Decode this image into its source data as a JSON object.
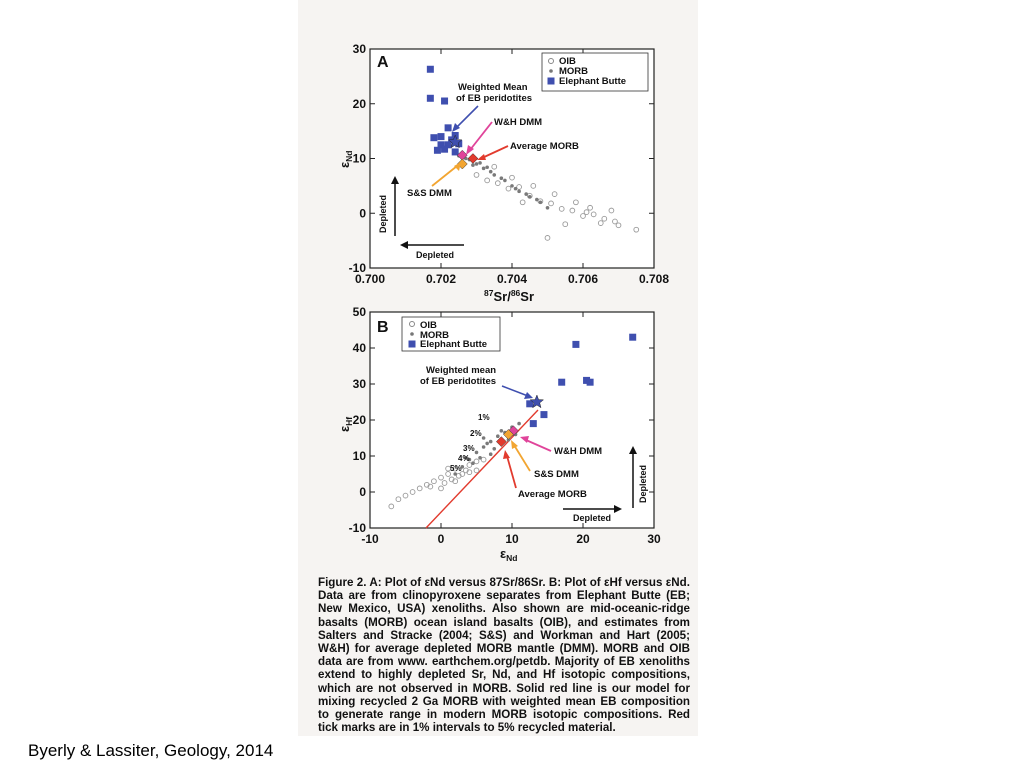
{
  "citation": "Byerly & Lassiter, Geology, 2014",
  "caption": {
    "lead": "Figure 2. A: Plot of ε",
    "body": "Nd versus 87Sr/86Sr. B: Plot of εHf versus εNd. Data are from clinopyroxene separates from Elephant Butte (EB; New Mexico, USA) xenoliths. Also shown are mid-oceanic-ridge basalts (MORB) ocean island basalts (OIB), and estimates from Salters and Stracke (2004; S&S) and Workman and Hart (2005; W&H) for average depleted MORB mantle (DMM). MORB and OIB data are from www. earthchem.org/petdb. Majority of EB xenoliths extend to highly depleted Sr, Nd, and Hf isotopic compositions, which are not observed in MORB. Solid red line is our model for mixing recycled 2 Ga MORB with weighted mean EB composition to generate range in modern MORB isotopic compositions. Red tick marks are in 1% intervals to 5% recycled material."
  },
  "colors": {
    "eb": "#3f4faf",
    "oib": "#9a9a9a",
    "morb": "#7a7a7a",
    "hd_dmm": "#e0449a",
    "ss_dmm": "#f2a531",
    "avg_morb": "#e23b2e",
    "mixing_line": "#e23b2e",
    "weighted_mean": "#3f4faf"
  },
  "chart_data": [
    {
      "type": "scatter",
      "panel_label": "A",
      "xlabel": "87Sr/86Sr",
      "ylabel": "εNd",
      "xlim": [
        0.7,
        0.708
      ],
      "ylim": [
        -10,
        30
      ],
      "x_ticks": [
        "0.700",
        "0.702",
        "0.704",
        "0.706",
        "0.708"
      ],
      "y_ticks": [
        "-10",
        "0",
        "10",
        "20",
        "30"
      ],
      "legend": [
        "OIB",
        "MORB",
        "Elephant Butte"
      ],
      "legend_position": "top-right",
      "series": [
        {
          "name": "Elephant Butte",
          "marker": "square",
          "points": [
            [
              0.7017,
              26.3
            ],
            [
              0.7017,
              21.0
            ],
            [
              0.7021,
              20.5
            ],
            [
              0.7022,
              15.6
            ],
            [
              0.702,
              14.0
            ],
            [
              0.7024,
              14.2
            ],
            [
              0.7023,
              13.4
            ],
            [
              0.7018,
              13.8
            ],
            [
              0.702,
              12.5
            ],
            [
              0.7022,
              12.5
            ],
            [
              0.7025,
              12.7
            ],
            [
              0.7019,
              11.5
            ],
            [
              0.7021,
              11.7
            ],
            [
              0.7024,
              11.2
            ]
          ]
        },
        {
          "name": "MORB",
          "marker": "dot",
          "points": [
            [
              0.7025,
              10.5
            ],
            [
              0.7028,
              9.8
            ],
            [
              0.703,
              9.0
            ],
            [
              0.7032,
              8.2
            ],
            [
              0.7035,
              7.0
            ],
            [
              0.7038,
              6.0
            ],
            [
              0.704,
              5.0
            ],
            [
              0.7042,
              4.0
            ],
            [
              0.7045,
              3.0
            ],
            [
              0.7048,
              2.0
            ],
            [
              0.705,
              1.0
            ],
            [
              0.7027,
              10.0
            ],
            [
              0.7031,
              9.2
            ],
            [
              0.7034,
              7.6
            ],
            [
              0.7037,
              6.4
            ],
            [
              0.7041,
              4.5
            ],
            [
              0.7044,
              3.5
            ],
            [
              0.7047,
              2.5
            ],
            [
              0.7029,
              8.8
            ],
            [
              0.7033,
              8.4
            ]
          ]
        },
        {
          "name": "OIB",
          "marker": "circle",
          "points": [
            [
              0.703,
              7.0
            ],
            [
              0.7033,
              6.0
            ],
            [
              0.7036,
              5.5
            ],
            [
              0.7039,
              4.5
            ],
            [
              0.7042,
              4.8
            ],
            [
              0.7045,
              3.2
            ],
            [
              0.7048,
              2.2
            ],
            [
              0.7051,
              1.8
            ],
            [
              0.7054,
              0.8
            ],
            [
              0.7057,
              0.5
            ],
            [
              0.706,
              -0.5
            ],
            [
              0.7063,
              -0.2
            ],
            [
              0.7066,
              -1.0
            ],
            [
              0.7069,
              -1.5
            ],
            [
              0.7055,
              -2.0
            ],
            [
              0.7052,
              3.5
            ],
            [
              0.7058,
              2.0
            ],
            [
              0.7062,
              1.0
            ],
            [
              0.704,
              6.5
            ],
            [
              0.7046,
              5.0
            ],
            [
              0.705,
              -4.5
            ],
            [
              0.7065,
              -1.8
            ],
            [
              0.707,
              -2.2
            ],
            [
              0.7075,
              -3.0
            ],
            [
              0.7035,
              8.5
            ],
            [
              0.7043,
              2.0
            ],
            [
              0.7061,
              0.2
            ],
            [
              0.7068,
              0.5
            ]
          ]
        }
      ],
      "annotations": [
        {
          "label": "Weighted Mean of EB peridotites",
          "x": 0.7024,
          "y": 13.0
        },
        {
          "label": "W&H DMM",
          "x": 0.7026,
          "y": 10.6
        },
        {
          "label": "Average MORB",
          "x": 0.7029,
          "y": 10.0
        },
        {
          "label": "S&S DMM",
          "x": 0.7026,
          "y": 9.0
        }
      ],
      "direction_labels": {
        "vertical": "Depleted",
        "horizontal": "Depleted"
      }
    },
    {
      "type": "scatter",
      "panel_label": "B",
      "xlabel": "εNd",
      "ylabel": "εHf",
      "xlim": [
        -10,
        30
      ],
      "ylim": [
        -10,
        50
      ],
      "x_ticks": [
        "-10",
        "0",
        "10",
        "20",
        "30"
      ],
      "y_ticks": [
        "-10",
        "0",
        "10",
        "20",
        "30",
        "40",
        "50"
      ],
      "legend": [
        "OIB",
        "MORB",
        "Elephant Butte"
      ],
      "legend_position": "top-left",
      "series": [
        {
          "name": "Elephant Butte",
          "marker": "square",
          "points": [
            [
              27.0,
              43.0
            ],
            [
              19.0,
              41.0
            ],
            [
              20.5,
              31.0
            ],
            [
              21.0,
              30.5
            ],
            [
              17.0,
              30.5
            ],
            [
              14.5,
              21.5
            ],
            [
              12.5,
              24.5
            ],
            [
              13.0,
              19.0
            ]
          ]
        },
        {
          "name": "MORB",
          "marker": "dot",
          "points": [
            [
              2.0,
              5.0
            ],
            [
              3.0,
              7.0
            ],
            [
              4.0,
              9.0
            ],
            [
              5.0,
              11.0
            ],
            [
              6.0,
              12.5
            ],
            [
              7.0,
              14.0
            ],
            [
              8.0,
              15.5
            ],
            [
              9.0,
              16.5
            ],
            [
              10.0,
              18.0
            ],
            [
              11.0,
              19.0
            ],
            [
              5.5,
              9.5
            ],
            [
              6.5,
              13.5
            ],
            [
              7.5,
              12.0
            ],
            [
              8.5,
              17.0
            ],
            [
              9.5,
              14.5
            ],
            [
              4.5,
              8.0
            ],
            [
              3.5,
              9.5
            ],
            [
              10.5,
              16.0
            ],
            [
              7.0,
              10.5
            ],
            [
              6.0,
              15.0
            ]
          ]
        },
        {
          "name": "OIB",
          "marker": "circle",
          "points": [
            [
              -7.0,
              -4.0
            ],
            [
              -5.0,
              -1.0
            ],
            [
              -3.0,
              1.0
            ],
            [
              -2.0,
              2.0
            ],
            [
              -1.0,
              3.0
            ],
            [
              0.0,
              4.0
            ],
            [
              1.0,
              5.0
            ],
            [
              2.0,
              6.5
            ],
            [
              3.0,
              5.0
            ],
            [
              4.0,
              7.5
            ],
            [
              -4.0,
              0.0
            ],
            [
              -1.5,
              1.5
            ],
            [
              0.5,
              2.5
            ],
            [
              1.5,
              3.5
            ],
            [
              2.5,
              4.5
            ],
            [
              3.5,
              6.0
            ],
            [
              5.0,
              8.5
            ],
            [
              6.0,
              9.0
            ],
            [
              -6.0,
              -2.0
            ],
            [
              0.0,
              1.0
            ],
            [
              1.0,
              6.5
            ],
            [
              2.0,
              3.0
            ],
            [
              4.0,
              5.5
            ],
            [
              5.0,
              6.0
            ]
          ]
        }
      ],
      "tick_labels": [
        "1%",
        "2%",
        "3%",
        "4%",
        "5%"
      ],
      "annotations": [
        {
          "label": "Weighted mean of EB peridotites",
          "x": 13.5,
          "y": 25.0
        },
        {
          "label": "W&H DMM",
          "x": 10.2,
          "y": 17.0
        },
        {
          "label": "S&S DMM",
          "x": 9.5,
          "y": 16.0
        },
        {
          "label": "Average MORB",
          "x": 8.5,
          "y": 14.0
        }
      ],
      "direction_labels": {
        "vertical": "Depleted",
        "horizontal": "Depleted"
      }
    }
  ]
}
